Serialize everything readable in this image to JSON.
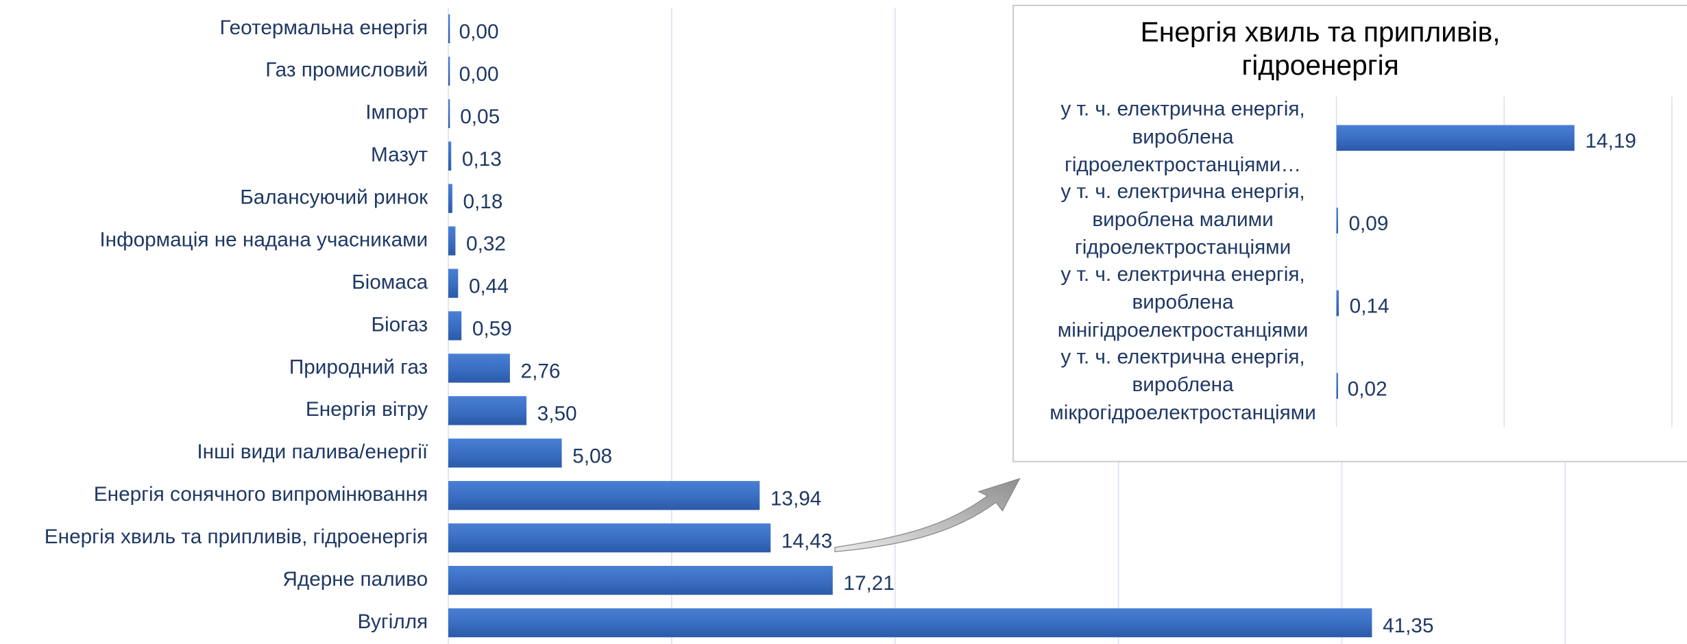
{
  "chart_data": [
    {
      "type": "bar",
      "orientation": "horizontal",
      "color": "#3a6fc4",
      "grid": true,
      "categories": [
        "Геотермальна енергія",
        "Газ промисловий",
        "Імпорт",
        "Мазут",
        "Балансуючий ринок",
        "Інформація не надана учасниками",
        "Біомаса",
        "Біогаз",
        "Природний газ",
        "Енергія вітру",
        "Інші види палива/енергії",
        "Енергія сонячного випромінювання",
        "Енергія хвиль та припливів, гідроенергія",
        "Ядерне паливо",
        "Вугілля"
      ],
      "values": [
        0,
        0,
        0.05,
        0.13,
        0.18,
        0.32,
        0.44,
        0.59,
        2.76,
        3.5,
        5.08,
        13.94,
        14.43,
        17.21,
        41.35
      ],
      "value_labels": [
        "0,00",
        "0,00",
        "0,05",
        "0,13",
        "0,18",
        "0,32",
        "0,44",
        "0,59",
        "2,76",
        "3,50",
        "5,08",
        "13,94",
        "14,43",
        "17,21",
        "41,35"
      ],
      "xlim": [
        0,
        55
      ],
      "xticks": [
        0,
        10,
        20,
        30,
        40,
        50
      ]
    },
    {
      "type": "bar",
      "orientation": "horizontal",
      "color": "#3a6fc4",
      "grid": true,
      "title": "Енергія хвиль та припливів,\nгідроенергія",
      "categories": [
        "у т. ч. електрична енергія,\nвироблена\nгідроелектростанціями…",
        "у т. ч. електрична енергія,\nвироблена малими\nгідроелектростанціями",
        "у т. ч. електрична енергія,\nвироблена\nмінігідроелектростанціями",
        "у т. ч. електрична енергія,\nвироблена\nмікрогідроелектростанціями"
      ],
      "values": [
        14.19,
        0.09,
        0.14,
        0.02
      ],
      "value_labels": [
        "14,19",
        "0,09",
        "0,14",
        "0,02"
      ],
      "xlim": [
        0,
        21
      ],
      "xticks": [
        0,
        10,
        20
      ]
    }
  ]
}
